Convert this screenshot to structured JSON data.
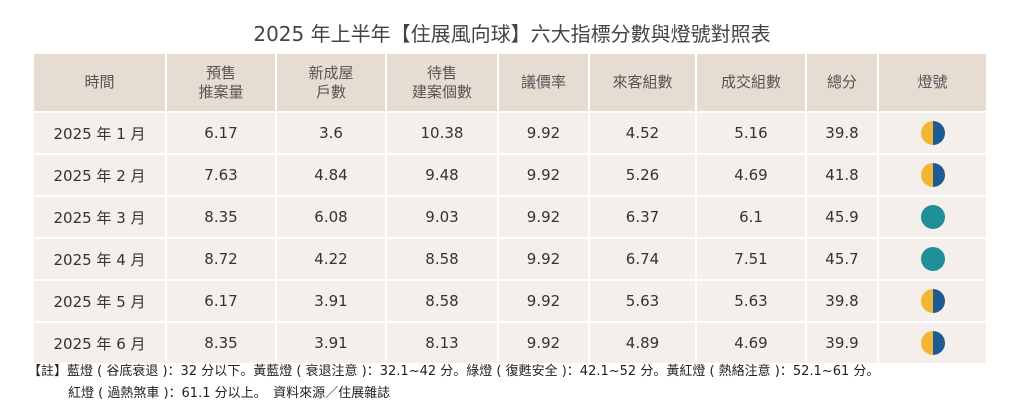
{
  "title": "2025 年上半年【住展風向球】六大指標分數與燈號對照表",
  "table": {
    "headers": [
      [
        "時間"
      ],
      [
        "預售",
        "推案量"
      ],
      [
        "新成屋",
        "戶數"
      ],
      [
        "待售",
        "建案個數"
      ],
      [
        "議價率"
      ],
      [
        "來客組數"
      ],
      [
        "成交組數"
      ],
      [
        "總分"
      ],
      [
        "燈號"
      ]
    ],
    "rows": [
      [
        "2025 年 1 月",
        6.17,
        3.6,
        10.38,
        9.92,
        4.52,
        5.16,
        39.8
      ],
      [
        "2025 年 2 月",
        7.63,
        4.84,
        9.48,
        9.92,
        5.26,
        4.69,
        41.8
      ],
      [
        "2025 年 3 月",
        8.35,
        6.08,
        9.03,
        9.92,
        6.37,
        6.1,
        45.9
      ],
      [
        "2025 年 4 月",
        8.72,
        4.22,
        8.58,
        9.92,
        6.74,
        7.51,
        45.7
      ],
      [
        "2025 年 5 月",
        6.17,
        3.91,
        8.58,
        9.92,
        5.63,
        5.63,
        39.8
      ],
      [
        "2025 年 6 月",
        8.35,
        3.91,
        8.13,
        9.92,
        4.89,
        4.69,
        39.9
      ]
    ],
    "light_colors": [
      [
        "#f2b637",
        "#1d5b92"
      ],
      [
        "#f2b637",
        "#1d5b92"
      ],
      [
        "#1f9097"
      ],
      [
        "#1f9097"
      ],
      [
        "#f2b637",
        "#1d5b92"
      ],
      [
        "#f2b637",
        "#1d5b92"
      ]
    ]
  },
  "notes": [
    "【註】藍燈 ( 谷底衰退 )：32 分以下。黃藍燈 ( 衰退注意 )：32.1~42 分。綠燈 ( 復甦安全 )：42.1~52 分。黃紅燈 ( 熱絡注意 )：52.1~61 分。",
    "紅燈 ( 過熱煞車 )：61.1 分以上。　資料來源／住展雜誌"
  ]
}
